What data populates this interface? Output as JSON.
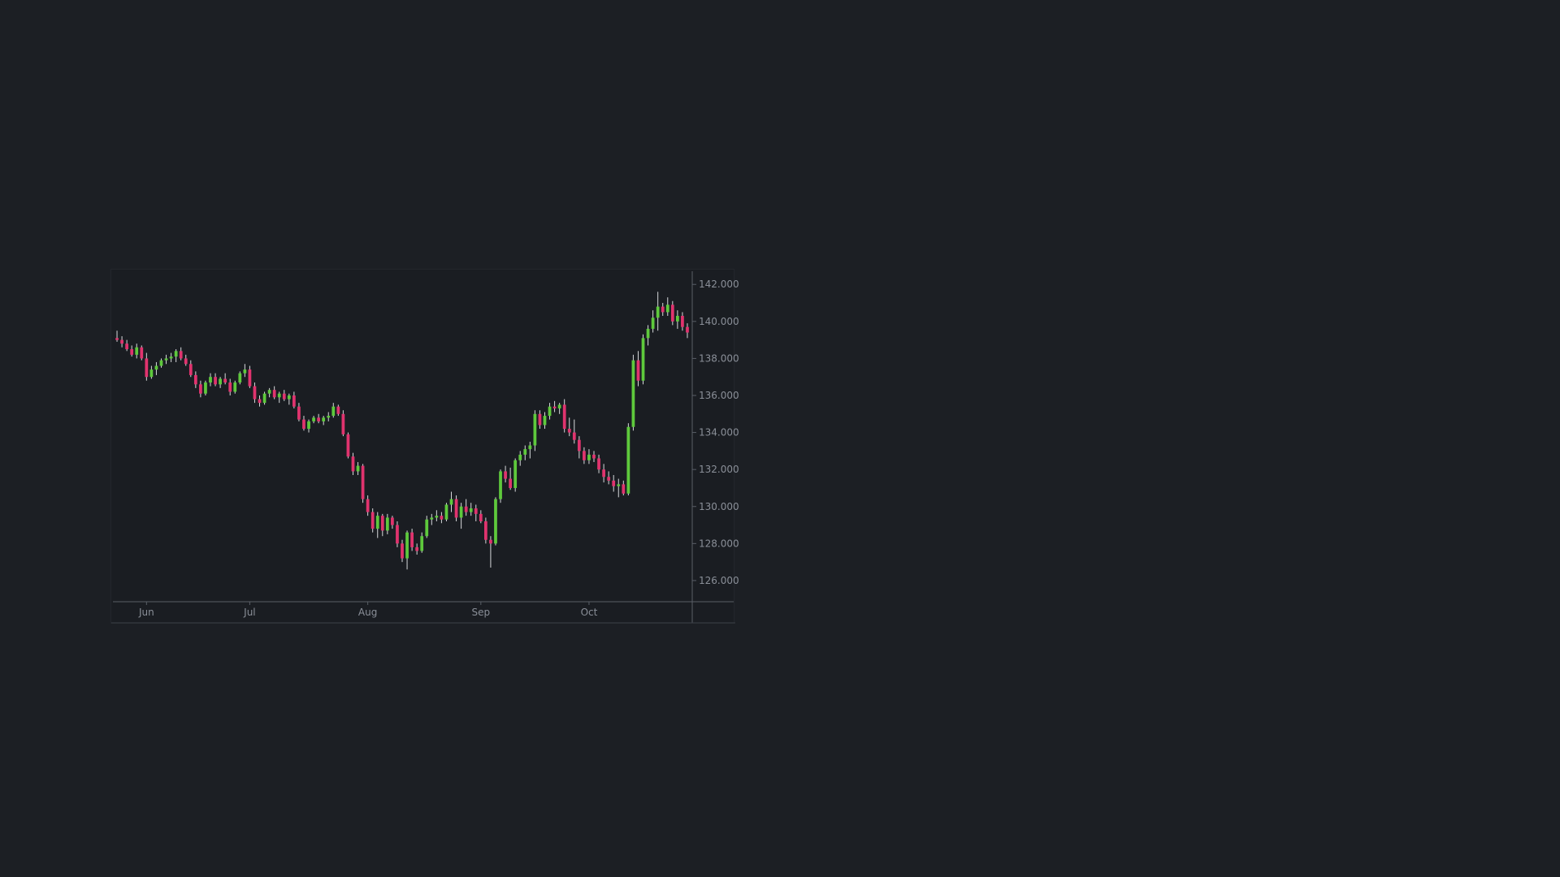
{
  "colors": {
    "background": "#1c1f24",
    "chart_background": "#1a1d22",
    "up": "#5ec93c",
    "down": "#e0336e",
    "axis": "#5a5f67",
    "tick_text": "#8a8f98"
  },
  "chart_data": {
    "type": "candlestick",
    "title": "",
    "xlabel": "",
    "ylabel": "",
    "x_axis_ticks": [
      {
        "label": "Jun",
        "index": 6
      },
      {
        "label": "Jul",
        "index": 27
      },
      {
        "label": "Aug",
        "index": 51
      },
      {
        "label": "Sep",
        "index": 74
      },
      {
        "label": "Oct",
        "index": 96
      }
    ],
    "y_axis_ticks": [
      "126.000",
      "128.000",
      "130.000",
      "132.000",
      "134.000",
      "136.000",
      "138.000",
      "140.000",
      "142.000"
    ],
    "ylim": [
      124.9,
      142.8
    ],
    "y_axis_side": "right",
    "grid": false,
    "candles": [
      [
        139.1,
        139.5,
        138.9,
        139.0
      ],
      [
        139.0,
        139.2,
        138.6,
        138.8
      ],
      [
        138.8,
        139.0,
        138.4,
        138.5
      ],
      [
        138.5,
        138.7,
        138.1,
        138.2
      ],
      [
        138.2,
        138.8,
        138.0,
        138.6
      ],
      [
        138.6,
        138.7,
        137.9,
        138.0
      ],
      [
        138.0,
        138.3,
        136.8,
        137.0
      ],
      [
        137.0,
        137.6,
        136.9,
        137.4
      ],
      [
        137.4,
        137.8,
        137.1,
        137.6
      ],
      [
        137.6,
        138.0,
        137.5,
        137.9
      ],
      [
        137.9,
        138.2,
        137.7,
        138.0
      ],
      [
        138.0,
        138.3,
        137.8,
        138.1
      ],
      [
        138.1,
        138.5,
        137.8,
        138.4
      ],
      [
        138.4,
        138.6,
        137.9,
        138.0
      ],
      [
        138.0,
        138.2,
        137.6,
        137.7
      ],
      [
        137.7,
        137.9,
        137.0,
        137.1
      ],
      [
        137.1,
        137.3,
        136.4,
        136.6
      ],
      [
        136.6,
        136.8,
        135.9,
        136.1
      ],
      [
        136.1,
        136.8,
        136.0,
        136.7
      ],
      [
        136.7,
        137.2,
        136.5,
        137.0
      ],
      [
        137.0,
        137.2,
        136.5,
        136.6
      ],
      [
        136.6,
        137.0,
        136.4,
        136.9
      ],
      [
        136.9,
        137.2,
        136.6,
        136.7
      ],
      [
        136.7,
        136.9,
        136.0,
        136.2
      ],
      [
        136.2,
        136.8,
        136.1,
        136.7
      ],
      [
        136.7,
        137.3,
        136.6,
        137.2
      ],
      [
        137.2,
        137.7,
        137.0,
        137.4
      ],
      [
        137.4,
        137.6,
        136.4,
        136.5
      ],
      [
        136.5,
        136.7,
        135.6,
        135.8
      ],
      [
        135.8,
        136.0,
        135.4,
        135.6
      ],
      [
        135.6,
        136.2,
        135.5,
        136.1
      ],
      [
        136.1,
        136.4,
        135.9,
        136.3
      ],
      [
        136.3,
        136.5,
        135.8,
        135.9
      ],
      [
        135.9,
        136.2,
        135.6,
        136.1
      ],
      [
        136.1,
        136.3,
        135.7,
        135.8
      ],
      [
        135.8,
        136.1,
        135.5,
        136.0
      ],
      [
        136.0,
        136.2,
        135.3,
        135.4
      ],
      [
        135.4,
        135.6,
        134.6,
        134.7
      ],
      [
        134.7,
        134.9,
        134.1,
        134.2
      ],
      [
        134.2,
        134.7,
        134.0,
        134.6
      ],
      [
        134.6,
        134.9,
        134.5,
        134.8
      ],
      [
        134.8,
        135.0,
        134.5,
        134.6
      ],
      [
        134.6,
        134.9,
        134.4,
        134.8
      ],
      [
        134.8,
        135.1,
        134.6,
        134.9
      ],
      [
        134.9,
        135.6,
        134.8,
        135.4
      ],
      [
        135.4,
        135.5,
        134.9,
        135.0
      ],
      [
        135.0,
        135.2,
        133.8,
        133.9
      ],
      [
        133.9,
        134.0,
        132.6,
        132.7
      ],
      [
        132.7,
        132.9,
        131.7,
        131.9
      ],
      [
        131.9,
        132.4,
        131.7,
        132.2
      ],
      [
        132.2,
        132.3,
        130.2,
        130.4
      ],
      [
        130.4,
        130.6,
        129.5,
        129.7
      ],
      [
        129.7,
        129.9,
        128.6,
        128.8
      ],
      [
        128.8,
        129.7,
        128.3,
        129.5
      ],
      [
        129.5,
        129.6,
        128.4,
        128.7
      ],
      [
        128.7,
        129.6,
        128.5,
        129.4
      ],
      [
        129.4,
        129.5,
        128.8,
        129.0
      ],
      [
        129.0,
        129.2,
        127.8,
        128.0
      ],
      [
        128.0,
        128.2,
        127.0,
        127.2
      ],
      [
        127.2,
        128.7,
        126.6,
        128.6
      ],
      [
        128.6,
        128.8,
        127.6,
        127.8
      ],
      [
        127.8,
        128.0,
        127.4,
        127.6
      ],
      [
        127.6,
        128.6,
        127.5,
        128.4
      ],
      [
        128.4,
        129.5,
        128.3,
        129.3
      ],
      [
        129.3,
        129.6,
        129.0,
        129.4
      ],
      [
        129.4,
        129.8,
        129.2,
        129.5
      ],
      [
        129.5,
        129.7,
        129.1,
        129.3
      ],
      [
        129.3,
        130.2,
        129.2,
        130.1
      ],
      [
        130.1,
        130.8,
        129.7,
        130.4
      ],
      [
        130.4,
        130.6,
        129.2,
        129.4
      ],
      [
        129.4,
        130.2,
        128.8,
        130.0
      ],
      [
        130.0,
        130.4,
        129.5,
        129.7
      ],
      [
        129.7,
        130.2,
        129.5,
        129.9
      ],
      [
        129.9,
        130.1,
        129.2,
        129.6
      ],
      [
        129.6,
        129.8,
        129.1,
        129.2
      ],
      [
        129.2,
        129.4,
        128.0,
        128.2
      ],
      [
        128.2,
        128.4,
        126.7,
        128.0
      ],
      [
        128.0,
        130.5,
        127.9,
        130.4
      ],
      [
        130.4,
        132.0,
        130.2,
        131.9
      ],
      [
        131.9,
        132.2,
        131.3,
        131.5
      ],
      [
        131.5,
        132.1,
        130.9,
        131.0
      ],
      [
        131.0,
        132.6,
        130.8,
        132.5
      ],
      [
        132.5,
        133.0,
        132.2,
        132.8
      ],
      [
        132.8,
        133.3,
        132.5,
        133.1
      ],
      [
        133.1,
        133.5,
        132.6,
        133.3
      ],
      [
        133.3,
        135.2,
        133.0,
        135.0
      ],
      [
        135.0,
        135.2,
        134.2,
        134.4
      ],
      [
        134.4,
        135.1,
        134.2,
        134.9
      ],
      [
        134.9,
        135.6,
        134.7,
        135.4
      ],
      [
        135.4,
        135.7,
        135.1,
        135.3
      ],
      [
        135.3,
        135.6,
        135.0,
        135.5
      ],
      [
        135.5,
        135.8,
        134.0,
        134.2
      ],
      [
        134.2,
        134.8,
        133.8,
        134.0
      ],
      [
        134.0,
        134.7,
        133.4,
        133.6
      ],
      [
        133.6,
        133.8,
        132.6,
        133.0
      ],
      [
        133.0,
        133.2,
        132.3,
        132.5
      ],
      [
        132.5,
        133.1,
        132.3,
        132.8
      ],
      [
        132.8,
        133.0,
        132.4,
        132.6
      ],
      [
        132.6,
        132.8,
        131.8,
        132.0
      ],
      [
        132.0,
        132.3,
        131.3,
        131.6
      ],
      [
        131.6,
        131.9,
        131.2,
        131.4
      ],
      [
        131.4,
        131.7,
        130.8,
        131.1
      ],
      [
        131.1,
        131.5,
        130.5,
        131.2
      ],
      [
        131.2,
        131.4,
        130.6,
        130.7
      ],
      [
        130.7,
        134.5,
        130.6,
        134.3
      ],
      [
        134.3,
        138.2,
        134.1,
        137.9
      ],
      [
        137.9,
        138.4,
        136.5,
        136.8
      ],
      [
        136.8,
        139.3,
        136.6,
        139.1
      ],
      [
        139.1,
        139.8,
        138.7,
        139.6
      ],
      [
        139.6,
        140.6,
        139.4,
        140.2
      ],
      [
        140.2,
        141.6,
        139.5,
        140.8
      ],
      [
        140.8,
        141.0,
        140.3,
        140.5
      ],
      [
        140.5,
        141.3,
        140.3,
        140.9
      ],
      [
        140.9,
        141.1,
        139.8,
        140.0
      ],
      [
        140.0,
        140.6,
        139.6,
        140.3
      ],
      [
        140.3,
        140.5,
        139.5,
        139.7
      ],
      [
        139.7,
        139.9,
        139.1,
        139.4
      ]
    ]
  }
}
